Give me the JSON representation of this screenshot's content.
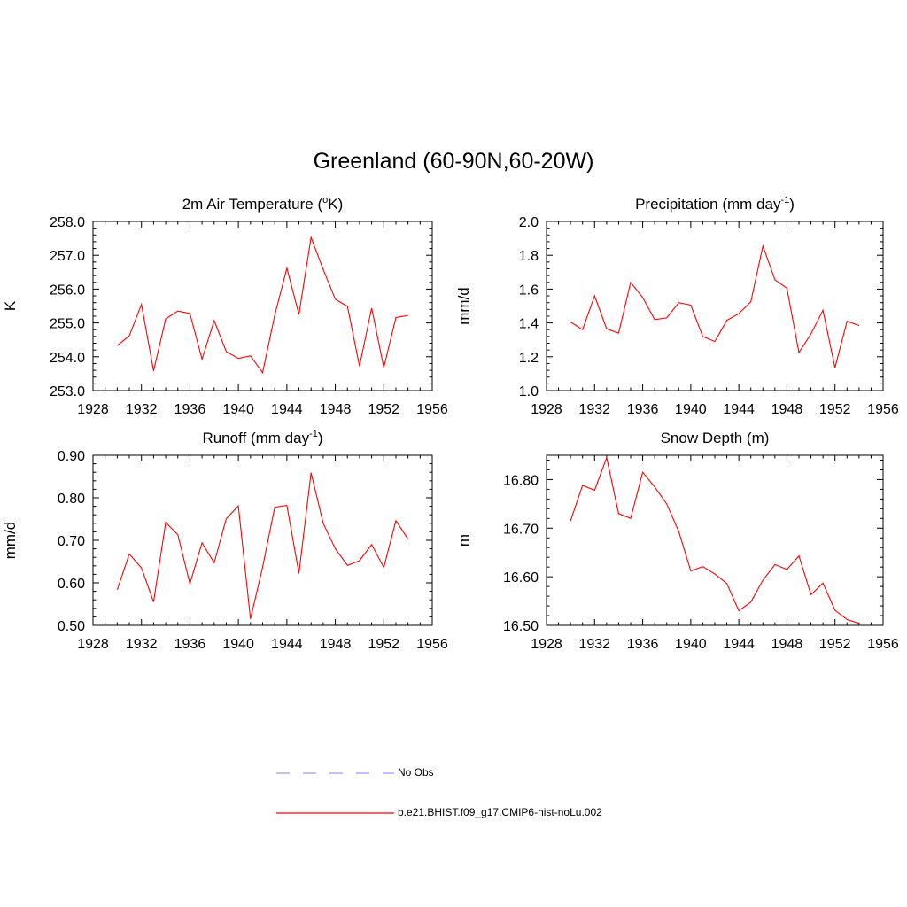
{
  "title": "Greenland (60-90N,60-20W)",
  "chart_data": [
    {
      "type": "line",
      "title": "2m Air Temperature (",
      "title_sup": "o",
      "title_end": "K)",
      "ylabel": "K",
      "xlim": [
        1928,
        1956
      ],
      "ylim": [
        253.0,
        258.0
      ],
      "xticks": [
        1928,
        1932,
        1936,
        1940,
        1944,
        1948,
        1952,
        1956
      ],
      "yticks": [
        "253.0",
        "254.0",
        "255.0",
        "256.0",
        "257.0",
        "258.0"
      ],
      "ytick_values": [
        253.0,
        254.0,
        255.0,
        256.0,
        257.0,
        258.0
      ],
      "x": [
        1930,
        1931,
        1932,
        1933,
        1934,
        1935,
        1936,
        1937,
        1938,
        1939,
        1940,
        1941,
        1942,
        1943,
        1944,
        1945,
        1946,
        1947,
        1948,
        1949,
        1950,
        1951,
        1952,
        1953,
        1954
      ],
      "series": [
        {
          "color": "#ff0000",
          "values": [
            254.33,
            254.62,
            255.55,
            253.58,
            255.12,
            255.35,
            255.28,
            253.93,
            255.07,
            254.15,
            253.95,
            254.03,
            253.53,
            255.23,
            256.62,
            255.25,
            257.53,
            256.58,
            255.7,
            255.49,
            253.72,
            255.44,
            253.68,
            255.16,
            255.22
          ]
        }
      ]
    },
    {
      "type": "line",
      "title": "Precipitation (mm day",
      "title_sup": "-1",
      "title_end": ")",
      "ylabel": "mm/d",
      "xlim": [
        1928,
        1956
      ],
      "ylim": [
        1.0,
        2.0
      ],
      "xticks": [
        1928,
        1932,
        1936,
        1940,
        1944,
        1948,
        1952,
        1956
      ],
      "yticks": [
        "1.0",
        "1.2",
        "1.4",
        "1.6",
        "1.8",
        "2.0"
      ],
      "ytick_values": [
        1.0,
        1.2,
        1.4,
        1.6,
        1.8,
        2.0
      ],
      "x": [
        1930,
        1931,
        1932,
        1933,
        1934,
        1935,
        1936,
        1937,
        1938,
        1939,
        1940,
        1941,
        1942,
        1943,
        1944,
        1945,
        1946,
        1947,
        1948,
        1949,
        1950,
        1951,
        1952,
        1953,
        1954
      ],
      "series": [
        {
          "color": "#ff0000",
          "values": [
            1.405,
            1.36,
            1.56,
            1.365,
            1.34,
            1.64,
            1.55,
            1.42,
            1.43,
            1.52,
            1.505,
            1.32,
            1.29,
            1.415,
            1.455,
            1.525,
            1.855,
            1.655,
            1.605,
            1.225,
            1.335,
            1.475,
            1.135,
            1.41,
            1.385
          ]
        }
      ]
    },
    {
      "type": "line",
      "title": "Runoff (mm day",
      "title_sup": "-1",
      "title_end": ")",
      "ylabel": "mm/d",
      "xlim": [
        1928,
        1956
      ],
      "ylim": [
        0.5,
        0.9
      ],
      "xticks": [
        1928,
        1932,
        1936,
        1940,
        1944,
        1948,
        1952,
        1956
      ],
      "yticks": [
        "0.50",
        "0.60",
        "0.70",
        "0.80",
        "0.90"
      ],
      "ytick_values": [
        0.5,
        0.6,
        0.7,
        0.8,
        0.9
      ],
      "x": [
        1930,
        1931,
        1932,
        1933,
        1934,
        1935,
        1936,
        1937,
        1938,
        1939,
        1940,
        1941,
        1942,
        1943,
        1944,
        1945,
        1946,
        1947,
        1948,
        1949,
        1950,
        1951,
        1952,
        1953,
        1954
      ],
      "series": [
        {
          "color": "#ff0000",
          "values": [
            0.584,
            0.668,
            0.635,
            0.555,
            0.742,
            0.713,
            0.598,
            0.694,
            0.647,
            0.751,
            0.781,
            0.515,
            0.637,
            0.778,
            0.782,
            0.622,
            0.859,
            0.74,
            0.68,
            0.641,
            0.652,
            0.69,
            0.636,
            0.746,
            0.703
          ]
        }
      ]
    },
    {
      "type": "line",
      "title": "Snow Depth (m)",
      "title_sup": "",
      "title_end": "",
      "ylabel": "m",
      "xlim": [
        1928,
        1956
      ],
      "ylim": [
        16.5,
        16.85
      ],
      "xticks": [
        1928,
        1932,
        1936,
        1940,
        1944,
        1948,
        1952,
        1956
      ],
      "yticks": [
        "16.50",
        "16.60",
        "16.70",
        "16.80"
      ],
      "ytick_values": [
        16.5,
        16.6,
        16.7,
        16.8
      ],
      "x": [
        1930,
        1931,
        1932,
        1933,
        1934,
        1935,
        1936,
        1937,
        1938,
        1939,
        1940,
        1941,
        1942,
        1943,
        1944,
        1945,
        1946,
        1947,
        1948,
        1949,
        1950,
        1951,
        1952,
        1953,
        1954
      ],
      "series": [
        {
          "color": "#ff0000",
          "values": [
            16.715,
            16.788,
            16.778,
            16.845,
            16.73,
            16.72,
            16.815,
            16.785,
            16.75,
            16.693,
            16.612,
            16.621,
            16.606,
            16.586,
            16.53,
            16.548,
            16.593,
            16.625,
            16.615,
            16.643,
            16.563,
            16.587,
            16.531,
            16.512,
            16.504
          ]
        }
      ]
    }
  ],
  "legend": [
    {
      "label": "No Obs",
      "color": "#9a9aff",
      "style": "dashed"
    },
    {
      "label": "b.e21.BHIST.f09_g17.CMIP6-hist-noLu.002",
      "color": "#ff0000",
      "style": "solid"
    }
  ]
}
